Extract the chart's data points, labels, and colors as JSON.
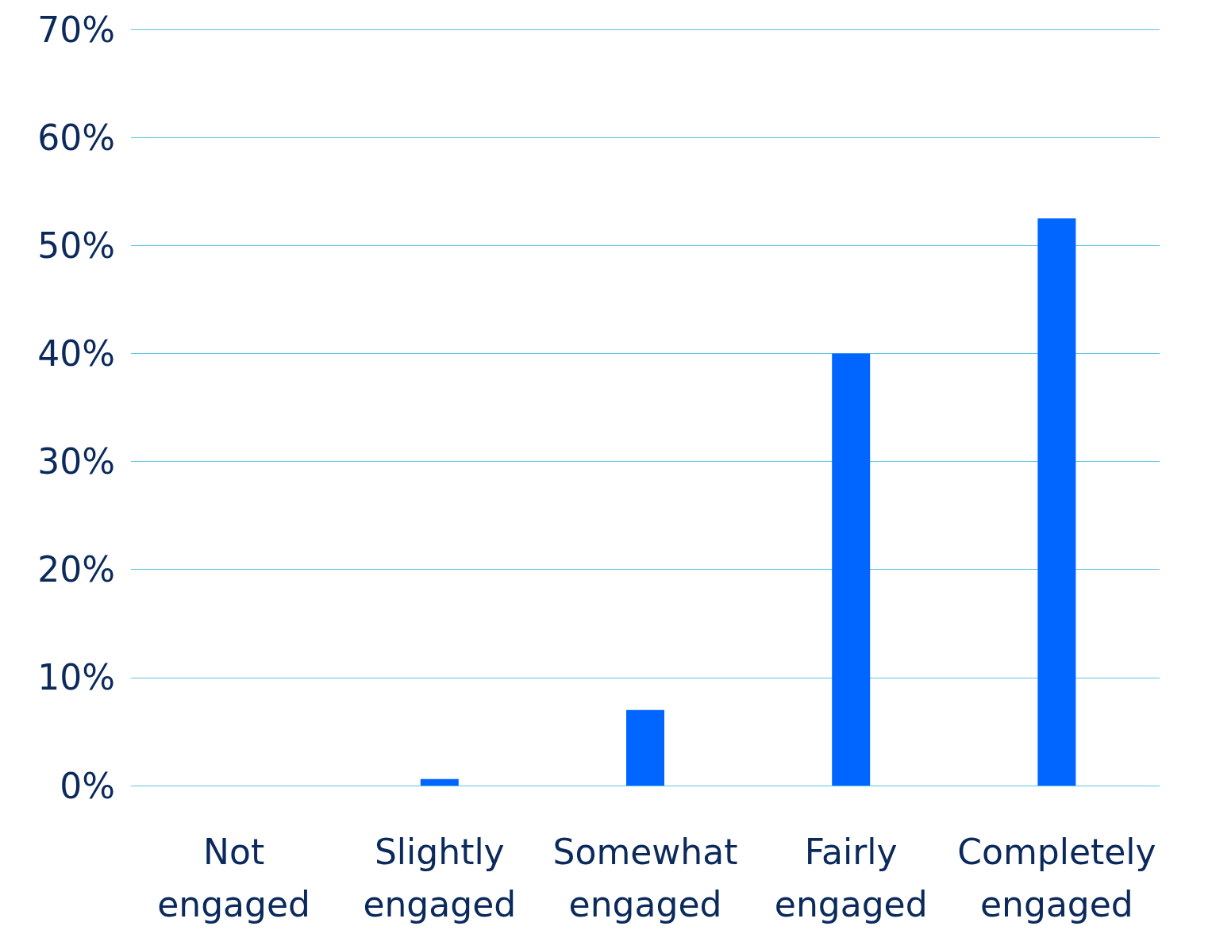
{
  "chart_data": {
    "type": "bar",
    "categories": [
      "Not engaged",
      "Slightly engaged",
      "Somewhat engaged",
      "Fairly engaged",
      "Completely engaged"
    ],
    "values": [
      0,
      0.6,
      7,
      40,
      52.5
    ],
    "color": "#0066ff",
    "ylim": [
      0,
      70
    ],
    "yticks": [
      {
        "value": 0,
        "label": "0%"
      },
      {
        "value": 10,
        "label": "10%"
      },
      {
        "value": 20,
        "label": "20%"
      },
      {
        "value": 30,
        "label": "30%"
      },
      {
        "value": 40,
        "label": "40%"
      },
      {
        "value": 50,
        "label": "50%"
      },
      {
        "value": 60,
        "label": "60%"
      },
      {
        "value": 70,
        "label": "70%"
      }
    ],
    "grid": true
  }
}
